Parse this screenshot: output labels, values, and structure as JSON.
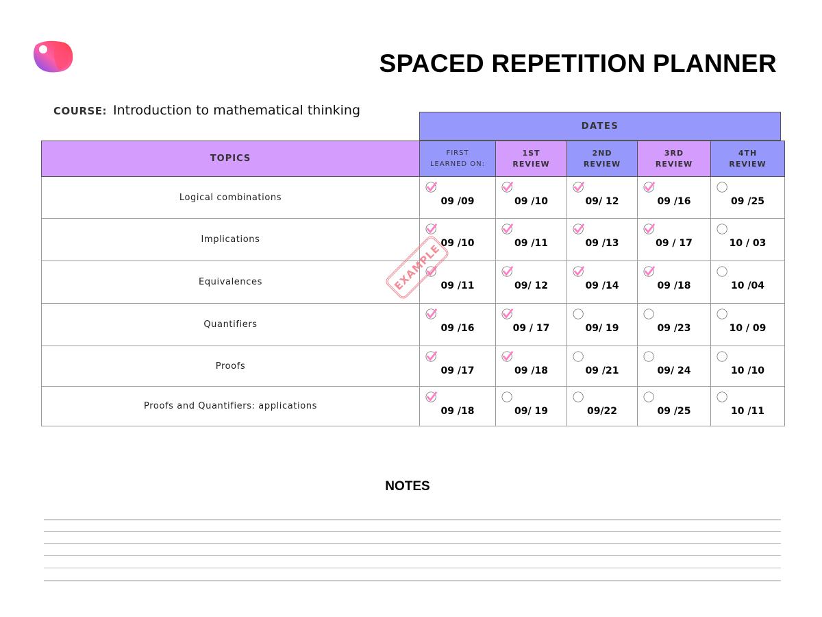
{
  "header": {
    "title": "SPACED REPETITION PLANNER",
    "course_label": "COURSE:",
    "course_value": "Introduction to mathematical thinking"
  },
  "table": {
    "dates_label": "DATES",
    "topics_label": "TOPICS",
    "columns": [
      {
        "l1": "FIRST",
        "l2": "LEARNED ON:"
      },
      {
        "l1": "1ST",
        "l2": "REVIEW"
      },
      {
        "l1": "2ND",
        "l2": "REVIEW"
      },
      {
        "l1": "3RD",
        "l2": "REVIEW"
      },
      {
        "l1": "4TH",
        "l2": "REVIEW"
      }
    ],
    "rows": [
      {
        "topic": "Logical combinations",
        "dates": [
          "09 /09",
          "09 /10",
          "09/ 12",
          "09 /16",
          "09 /25"
        ],
        "done": [
          true,
          true,
          true,
          true,
          false
        ]
      },
      {
        "topic": "Implications",
        "dates": [
          "09 /10",
          "09 /11",
          "09 /13",
          "09 / 17",
          "10 / 03"
        ],
        "done": [
          true,
          true,
          true,
          true,
          false
        ]
      },
      {
        "topic": "Equivalences",
        "dates": [
          "09 /11",
          "09/ 12",
          "09 /14",
          "09 /18",
          "10 /04"
        ],
        "done": [
          true,
          true,
          true,
          true,
          false
        ]
      },
      {
        "topic": "Quantifiers",
        "dates": [
          "09 /16",
          "09 / 17",
          "09/ 19",
          "09 /23",
          "10 /  09"
        ],
        "done": [
          true,
          true,
          false,
          false,
          false
        ]
      },
      {
        "topic": "Proofs",
        "dates": [
          "09 /17",
          "09 /18",
          "09 /21",
          "09/ 24",
          "10 /10"
        ],
        "done": [
          true,
          true,
          false,
          false,
          false
        ]
      },
      {
        "topic": "Proofs and Quantifiers: applications",
        "dates": [
          "09 /18",
          "09/ 19",
          "09/22",
          "09 /25",
          "10 /11"
        ],
        "done": [
          true,
          false,
          false,
          false,
          false
        ]
      }
    ]
  },
  "stamp": "EXAMPLE",
  "notes": {
    "title": "NOTES"
  },
  "colors": {
    "purple": "#9698fc",
    "violet": "#d49cfc",
    "check": "#ff7ec8",
    "stamp": "#f07a86"
  }
}
